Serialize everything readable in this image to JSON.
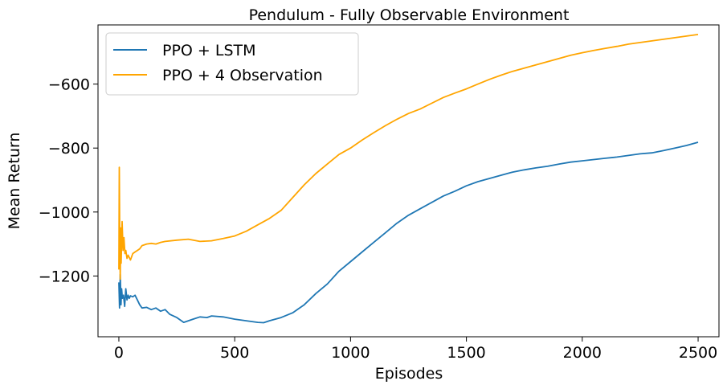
{
  "chart_data": {
    "type": "line",
    "title": "Pendulum - Fully Observable Environment",
    "xlabel": "Episodes",
    "ylabel": "Mean Return",
    "xlim": [
      -90,
      2590
    ],
    "ylim": [
      -1390,
      -415
    ],
    "xticks": [
      0,
      500,
      1000,
      1500,
      2000,
      2500
    ],
    "xtick_labels": [
      "0",
      "500",
      "1000",
      "1500",
      "2000",
      "2500"
    ],
    "yticks": [
      -1200,
      -1000,
      -800,
      -600
    ],
    "ytick_labels": [
      "−1200",
      "−1000",
      "−800",
      "−600"
    ],
    "grid": false,
    "legend_position": "upper-left",
    "series": [
      {
        "name": "PPO + LSTM",
        "color": "#1f77b4",
        "x": [
          0,
          3,
          6,
          9,
          12,
          15,
          20,
          25,
          30,
          35,
          40,
          45,
          50,
          60,
          70,
          80,
          90,
          100,
          120,
          140,
          160,
          180,
          200,
          220,
          250,
          280,
          300,
          320,
          350,
          380,
          400,
          450,
          500,
          550,
          600,
          625,
          650,
          700,
          750,
          800,
          850,
          900,
          950,
          1000,
          1050,
          1100,
          1150,
          1200,
          1250,
          1300,
          1350,
          1400,
          1450,
          1500,
          1550,
          1600,
          1650,
          1700,
          1750,
          1800,
          1850,
          1900,
          1950,
          2000,
          2050,
          2100,
          2150,
          2200,
          2250,
          2300,
          2350,
          2400,
          2450,
          2500
        ],
        "y": [
          -1220,
          -1300,
          -1195,
          -1290,
          -1240,
          -1270,
          -1260,
          -1295,
          -1240,
          -1275,
          -1260,
          -1270,
          -1262,
          -1265,
          -1260,
          -1275,
          -1290,
          -1300,
          -1298,
          -1305,
          -1300,
          -1310,
          -1305,
          -1320,
          -1330,
          -1345,
          -1340,
          -1335,
          -1328,
          -1330,
          -1325,
          -1328,
          -1335,
          -1340,
          -1345,
          -1346,
          -1340,
          -1330,
          -1315,
          -1290,
          -1255,
          -1225,
          -1185,
          -1155,
          -1125,
          -1095,
          -1065,
          -1035,
          -1010,
          -990,
          -970,
          -950,
          -935,
          -918,
          -905,
          -895,
          -885,
          -875,
          -868,
          -862,
          -857,
          -850,
          -844,
          -840,
          -836,
          -832,
          -828,
          -823,
          -818,
          -815,
          -808,
          -800,
          -792,
          -782
        ]
      },
      {
        "name": "PPO + 4 Observation",
        "color": "#ffa500",
        "x": [
          0,
          2,
          4,
          6,
          8,
          10,
          14,
          18,
          22,
          26,
          30,
          35,
          40,
          50,
          60,
          70,
          80,
          90,
          100,
          120,
          140,
          160,
          180,
          200,
          250,
          300,
          350,
          400,
          450,
          500,
          550,
          600,
          650,
          700,
          750,
          800,
          850,
          900,
          950,
          1000,
          1050,
          1100,
          1150,
          1200,
          1250,
          1300,
          1350,
          1400,
          1450,
          1500,
          1550,
          1600,
          1650,
          1700,
          1750,
          1800,
          1850,
          1900,
          1950,
          2000,
          2050,
          2100,
          2150,
          2200,
          2250,
          2300,
          2350,
          2400,
          2450,
          2500
        ],
        "y": [
          -1180,
          -860,
          -1100,
          -1210,
          -1050,
          -1160,
          -1030,
          -1120,
          -1080,
          -1130,
          -1120,
          -1145,
          -1135,
          -1150,
          -1130,
          -1125,
          -1120,
          -1115,
          -1105,
          -1100,
          -1098,
          -1100,
          -1095,
          -1092,
          -1088,
          -1085,
          -1092,
          -1090,
          -1083,
          -1075,
          -1060,
          -1040,
          -1020,
          -995,
          -955,
          -915,
          -880,
          -850,
          -820,
          -800,
          -775,
          -752,
          -730,
          -710,
          -692,
          -678,
          -660,
          -642,
          -628,
          -615,
          -600,
          -585,
          -572,
          -560,
          -550,
          -540,
          -530,
          -520,
          -510,
          -502,
          -495,
          -488,
          -482,
          -475,
          -470,
          -465,
          -460,
          -455,
          -450,
          -445
        ]
      }
    ]
  }
}
